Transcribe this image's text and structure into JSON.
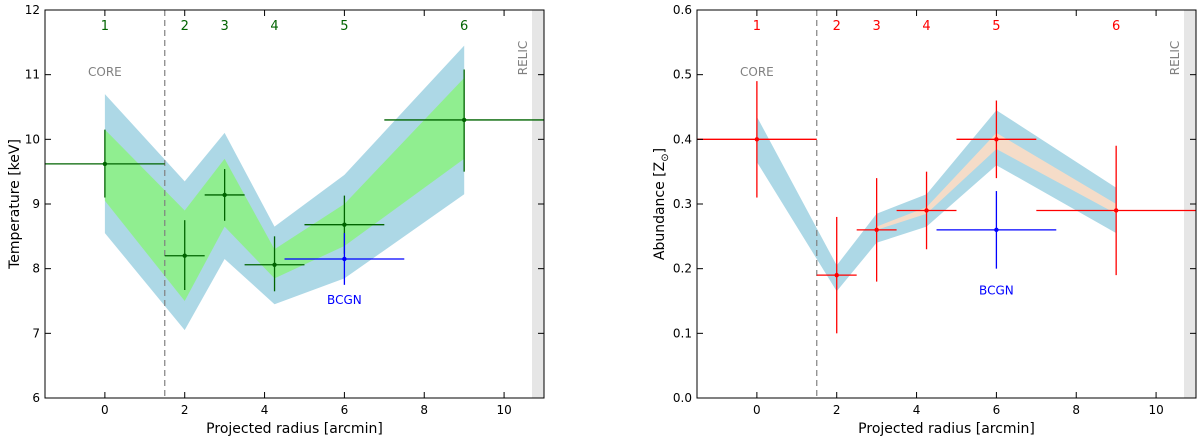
{
  "chart_data": [
    {
      "type": "scatter",
      "xlabel": "Projected radius [arcmin]",
      "ylabel": "Temperature [keV]",
      "xlim": [
        -1.5,
        11
      ],
      "ylim": [
        6,
        12
      ],
      "xticks": [
        0,
        2,
        4,
        6,
        8,
        10
      ],
      "yticks": [
        6,
        7,
        8,
        9,
        10,
        11,
        12
      ],
      "core_boundary_x": 1.5,
      "relic_span": [
        10.7,
        11
      ],
      "core_label": "CORE",
      "relic_label": "RELIC",
      "region_labels": [
        {
          "text": "1",
          "x": 0
        },
        {
          "text": "2",
          "x": 2
        },
        {
          "text": "3",
          "x": 3
        },
        {
          "text": "4",
          "x": 4.25
        },
        {
          "text": "5",
          "x": 6
        },
        {
          "text": "6",
          "x": 9
        }
      ],
      "bands": [
        {
          "name": "outer",
          "color": "#add8e6",
          "x": [
            0,
            2,
            3,
            4.25,
            6,
            9
          ],
          "lower": [
            8.55,
            7.05,
            8.15,
            7.45,
            7.85,
            9.15
          ],
          "upper": [
            10.7,
            9.35,
            10.1,
            8.65,
            9.45,
            11.45
          ]
        },
        {
          "name": "inner",
          "color": "#90ee90",
          "x": [
            0,
            2,
            3,
            4.25,
            6,
            9
          ],
          "lower": [
            9.05,
            7.5,
            8.65,
            7.85,
            8.35,
            9.7
          ],
          "upper": [
            10.15,
            8.9,
            9.7,
            8.3,
            9.0,
            10.95
          ]
        }
      ],
      "series": [
        {
          "name": "annuli",
          "color": "#006400",
          "points": [
            {
              "x": 0,
              "y": 9.62,
              "xlo": -1.5,
              "xhi": 1.5,
              "ylo": 9.1,
              "yhi": 10.15
            },
            {
              "x": 2,
              "y": 8.2,
              "xlo": 1.5,
              "xhi": 2.5,
              "ylo": 7.67,
              "yhi": 8.75
            },
            {
              "x": 3,
              "y": 9.14,
              "xlo": 2.5,
              "xhi": 3.5,
              "ylo": 8.74,
              "yhi": 9.54
            },
            {
              "x": 4.25,
              "y": 8.06,
              "xlo": 3.5,
              "xhi": 5,
              "ylo": 7.65,
              "yhi": 8.5
            },
            {
              "x": 6,
              "y": 8.68,
              "xlo": 5,
              "xhi": 7,
              "ylo": 8.23,
              "yhi": 9.13
            },
            {
              "x": 9,
              "y": 10.3,
              "xlo": 7,
              "xhi": 11,
              "ylo": 9.5,
              "yhi": 11.08
            }
          ]
        },
        {
          "name": "BCGN",
          "label": "BCGN",
          "color": "#0000ff",
          "label_x": 6,
          "label_y": 7.45,
          "points": [
            {
              "x": 6,
              "y": 8.15,
              "xlo": 4.5,
              "xhi": 7.5,
              "ylo": 7.75,
              "yhi": 8.55
            }
          ]
        }
      ]
    },
    {
      "type": "scatter",
      "xlabel": "Projected radius [arcmin]",
      "ylabel_main": "Abundance [Z",
      "ylabel_sub": "⊙",
      "ylabel_end": "]",
      "xlim": [
        -1.5,
        11
      ],
      "ylim": [
        0.0,
        0.6
      ],
      "xticks": [
        0,
        2,
        4,
        6,
        8,
        10
      ],
      "yticks": [
        0.0,
        0.1,
        0.2,
        0.3,
        0.4,
        0.5,
        0.6
      ],
      "core_boundary_x": 1.5,
      "relic_span": [
        10.7,
        11
      ],
      "core_label": "CORE",
      "relic_label": "RELIC",
      "region_labels": [
        {
          "text": "1",
          "x": 0
        },
        {
          "text": "2",
          "x": 2
        },
        {
          "text": "3",
          "x": 3
        },
        {
          "text": "4",
          "x": 4.25
        },
        {
          "text": "5",
          "x": 6
        },
        {
          "text": "6",
          "x": 9
        }
      ],
      "bands": [
        {
          "name": "outer",
          "color": "#add8e6",
          "x": [
            0,
            2,
            3,
            4.25,
            6,
            9
          ],
          "lower": [
            0.365,
            0.165,
            0.24,
            0.265,
            0.36,
            0.255
          ],
          "upper": [
            0.435,
            0.205,
            0.285,
            0.315,
            0.445,
            0.325
          ]
        },
        {
          "name": "inner",
          "color": "#f5dcc8",
          "x": [
            3,
            4.25,
            6,
            9
          ],
          "lower": [
            0.26,
            0.285,
            0.385,
            0.285
          ],
          "upper": [
            0.265,
            0.295,
            0.41,
            0.3
          ]
        }
      ],
      "series": [
        {
          "name": "annuli",
          "color": "#ff0000",
          "points": [
            {
              "x": 0,
              "y": 0.4,
              "xlo": -1.5,
              "xhi": 1.5,
              "ylo": 0.31,
              "yhi": 0.49
            },
            {
              "x": 2,
              "y": 0.19,
              "xlo": 1.5,
              "xhi": 2.5,
              "ylo": 0.1,
              "yhi": 0.28
            },
            {
              "x": 3,
              "y": 0.26,
              "xlo": 2.5,
              "xhi": 3.5,
              "ylo": 0.18,
              "yhi": 0.34
            },
            {
              "x": 4.25,
              "y": 0.29,
              "xlo": 3.5,
              "xhi": 5,
              "ylo": 0.23,
              "yhi": 0.35
            },
            {
              "x": 6,
              "y": 0.4,
              "xlo": 5,
              "xhi": 7,
              "ylo": 0.34,
              "yhi": 0.46
            },
            {
              "x": 9,
              "y": 0.29,
              "xlo": 7,
              "xhi": 11,
              "ylo": 0.19,
              "yhi": 0.39
            }
          ]
        },
        {
          "name": "BCGN",
          "label": "BCGN",
          "color": "#0000ff",
          "label_x": 6,
          "label_y": 0.16,
          "points": [
            {
              "x": 6,
              "y": 0.26,
              "xlo": 4.5,
              "xhi": 7.5,
              "ylo": 0.2,
              "yhi": 0.32
            }
          ]
        }
      ]
    }
  ]
}
